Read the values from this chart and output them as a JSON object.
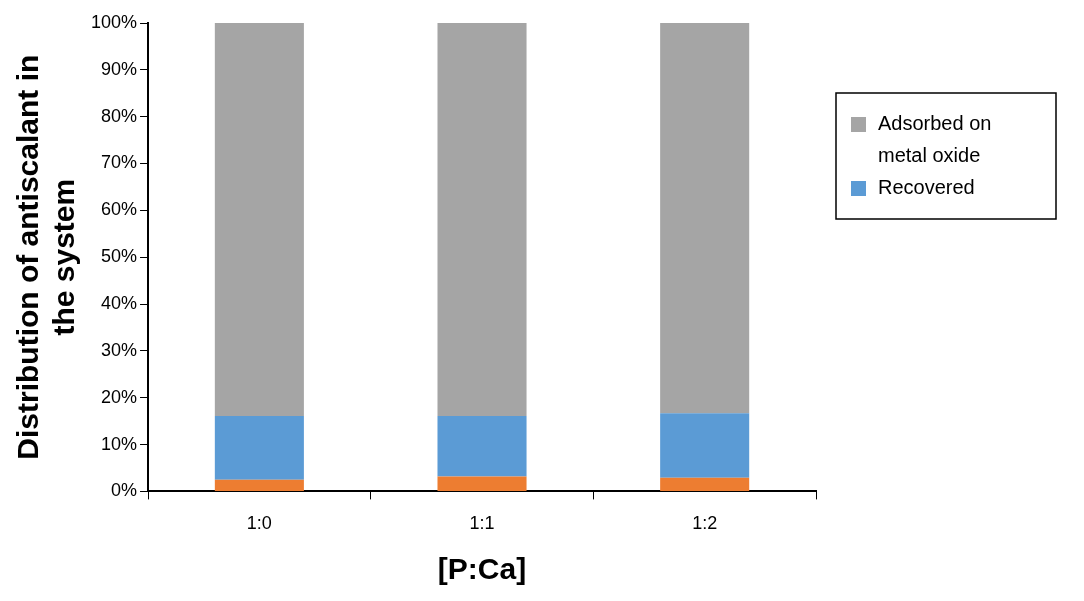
{
  "chart_data": {
    "type": "bar",
    "stacked": true,
    "categories": [
      "1:0",
      "1:1",
      "1:2"
    ],
    "xlabel": "[P:Ca]",
    "ylabel": "Distribution of antiscalant in the system",
    "series": [
      {
        "color": "#ed7d31",
        "values": [
          2.5,
          3.2,
          2.9
        ]
      },
      {
        "name": "Recovered",
        "color": "#5b9bd5",
        "values": [
          13.6,
          12.9,
          13.8
        ]
      },
      {
        "name": "Adsorbed on metal oxide",
        "color": "#a5a5a5",
        "values": [
          83.9,
          83.9,
          83.3
        ]
      }
    ],
    "ylim": [
      0,
      100
    ],
    "yticks": [
      {
        "value": 0,
        "label": "0%"
      },
      {
        "value": 10,
        "label": "10%"
      },
      {
        "value": 20,
        "label": "20%"
      },
      {
        "value": 30,
        "label": "30%"
      },
      {
        "value": 40,
        "label": "40%"
      },
      {
        "value": 50,
        "label": "50%"
      },
      {
        "value": 60,
        "label": "60%"
      },
      {
        "value": 70,
        "label": "70%"
      },
      {
        "value": 80,
        "label": "80%"
      },
      {
        "value": 90,
        "label": "90%"
      },
      {
        "value": 100,
        "label": "100%"
      }
    ],
    "grid": false,
    "legend": "right"
  }
}
